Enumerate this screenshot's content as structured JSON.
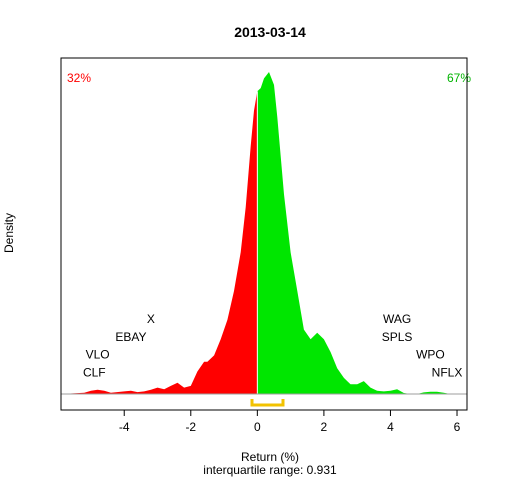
{
  "chart_data": {
    "type": "area",
    "title": "2013-03-14",
    "xlabel": "Return (%)",
    "ylabel": "Density",
    "subtitle": "interquartile range: 0.931",
    "xlim": [
      -5.9,
      6.3
    ],
    "ylim": [
      -0.02,
      1.0
    ],
    "x_ticks": [
      -4,
      -2,
      0,
      2,
      4,
      6
    ],
    "split_at": 0,
    "negative_share": "32%",
    "positive_share": "67%",
    "colors": {
      "negative": "#ff0000",
      "positive": "#00e600",
      "iqr": "#f2c200",
      "title": "#000000"
    },
    "iqr": [
      -0.16,
      0.77
    ],
    "density": {
      "x": [
        -5.9,
        -5.2,
        -5.0,
        -4.8,
        -4.6,
        -4.4,
        -4.0,
        -3.8,
        -3.6,
        -3.4,
        -3.2,
        -3.0,
        -2.8,
        -2.6,
        -2.4,
        -2.2,
        -2.0,
        -1.8,
        -1.6,
        -1.5,
        -1.3,
        -1.1,
        -0.9,
        -0.7,
        -0.5,
        -0.35,
        -0.2,
        -0.1,
        0.0,
        0.1,
        0.2,
        0.35,
        0.5,
        0.6,
        0.8,
        1.0,
        1.2,
        1.4,
        1.6,
        1.8,
        2.0,
        2.2,
        2.4,
        2.6,
        2.8,
        3.0,
        3.2,
        3.4,
        3.6,
        3.8,
        4.0,
        4.2,
        4.4,
        4.6,
        4.8,
        5.0,
        5.2,
        5.4,
        5.6,
        5.8,
        6.0,
        6.3
      ],
      "y": [
        0.0,
        0.004,
        0.01,
        0.013,
        0.01,
        0.004,
        0.008,
        0.01,
        0.006,
        0.008,
        0.013,
        0.02,
        0.015,
        0.025,
        0.035,
        0.02,
        0.025,
        0.07,
        0.1,
        0.1,
        0.12,
        0.17,
        0.23,
        0.32,
        0.44,
        0.58,
        0.77,
        0.88,
        0.94,
        0.95,
        0.98,
        1.0,
        0.96,
        0.86,
        0.62,
        0.44,
        0.32,
        0.2,
        0.17,
        0.19,
        0.17,
        0.13,
        0.08,
        0.05,
        0.03,
        0.03,
        0.04,
        0.02,
        0.01,
        0.008,
        0.01,
        0.015,
        0.003,
        0.0,
        0.0,
        0.005,
        0.007,
        0.007,
        0.004,
        0.0,
        0.0,
        0.0
      ]
    },
    "annotations": [
      {
        "label": "X",
        "x": -3.2,
        "y": 0.22,
        "side": "negative"
      },
      {
        "label": "EBAY",
        "x": -3.8,
        "y": 0.165,
        "side": "negative"
      },
      {
        "label": "VLO",
        "x": -4.8,
        "y": 0.11,
        "side": "negative"
      },
      {
        "label": "CLF",
        "x": -4.9,
        "y": 0.055,
        "side": "negative"
      },
      {
        "label": "WAG",
        "x": 4.2,
        "y": 0.22,
        "side": "positive"
      },
      {
        "label": "SPLS",
        "x": 4.2,
        "y": 0.165,
        "side": "positive"
      },
      {
        "label": "WPO",
        "x": 5.2,
        "y": 0.11,
        "side": "positive"
      },
      {
        "label": "NFLX",
        "x": 5.7,
        "y": 0.055,
        "side": "positive"
      }
    ]
  }
}
